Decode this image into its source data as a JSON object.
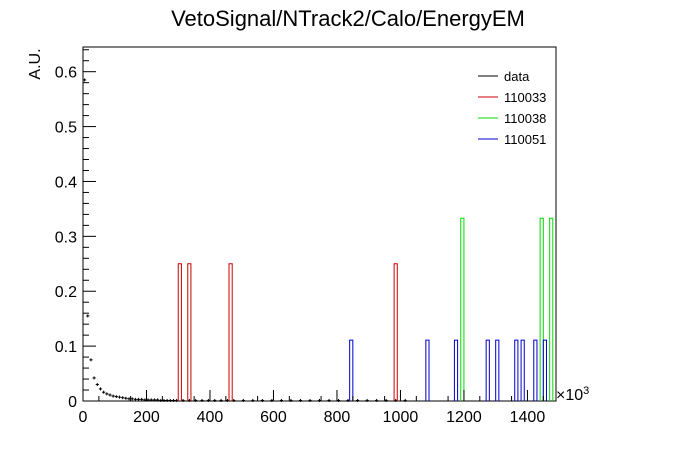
{
  "chart_data": {
    "type": "histogram",
    "title": "VetoSignal/NTrack2/Calo/EnergyEM",
    "xlabel": "",
    "ylabel": "A.U.",
    "x_multiplier": "×10",
    "x_multiplier_exp": "3",
    "xlim": [
      0,
      1490
    ],
    "ylim": [
      0,
      0.645
    ],
    "x_ticks": [
      "0",
      "200",
      "400",
      "600",
      "800",
      "1000",
      "1200",
      "1400"
    ],
    "y_ticks": [
      "0",
      "0.1",
      "0.2",
      "0.3",
      "0.4",
      "0.5",
      "0.6"
    ],
    "bin_width": 10,
    "legend": [
      {
        "label": "data",
        "color": "#000000"
      },
      {
        "label": "110033",
        "color": "#cc0000"
      },
      {
        "label": "110038",
        "color": "#00dd00"
      },
      {
        "label": "110051",
        "color": "#0000cc"
      }
    ],
    "series": [
      {
        "name": "data",
        "style": "markers",
        "color": "#000000",
        "points": [
          [
            5,
            0.585
          ],
          [
            15,
            0.155
          ],
          [
            25,
            0.075
          ],
          [
            35,
            0.042
          ],
          [
            45,
            0.03
          ],
          [
            55,
            0.022
          ],
          [
            65,
            0.016
          ],
          [
            75,
            0.013
          ],
          [
            85,
            0.011
          ],
          [
            95,
            0.009
          ],
          [
            105,
            0.008
          ],
          [
            115,
            0.007
          ],
          [
            125,
            0.006
          ],
          [
            135,
            0.005
          ],
          [
            145,
            0.004
          ],
          [
            155,
            0.004
          ],
          [
            165,
            0.003
          ],
          [
            175,
            0.003
          ],
          [
            185,
            0.003
          ],
          [
            195,
            0.002
          ],
          [
            205,
            0.002
          ],
          [
            215,
            0.002
          ],
          [
            225,
            0.002
          ],
          [
            235,
            0.002
          ],
          [
            245,
            0.001
          ],
          [
            255,
            0.001
          ],
          [
            265,
            0.001
          ],
          [
            275,
            0.001
          ],
          [
            285,
            0.001
          ],
          [
            295,
            0.001
          ],
          [
            315,
            0.001
          ],
          [
            335,
            0.001
          ],
          [
            355,
            0.001
          ],
          [
            375,
            0.001
          ],
          [
            395,
            0.001
          ],
          [
            415,
            0.001
          ],
          [
            435,
            0.001
          ],
          [
            455,
            0.001
          ],
          [
            475,
            0.001
          ],
          [
            505,
            0.001
          ],
          [
            535,
            0.001
          ],
          [
            565,
            0.001
          ],
          [
            595,
            0.001
          ],
          [
            625,
            0.001
          ],
          [
            655,
            0.001
          ],
          [
            685,
            0.001
          ],
          [
            715,
            0.001
          ],
          [
            745,
            0.001
          ],
          [
            775,
            0.001
          ],
          [
            805,
            0.001
          ],
          [
            835,
            0.001
          ],
          [
            865,
            0.001
          ],
          [
            895,
            0.001
          ],
          [
            925,
            0.001
          ],
          [
            955,
            0.001
          ],
          [
            985,
            0.001
          ],
          [
            1015,
            0.001
          ]
        ]
      },
      {
        "name": "110033",
        "style": "step",
        "color": "#cc0000",
        "bins": [
          [
            300,
            0.25
          ],
          [
            330,
            0.25
          ],
          [
            460,
            0.25
          ],
          [
            980,
            0.25
          ]
        ]
      },
      {
        "name": "110038",
        "style": "step",
        "color": "#00dd00",
        "bins": [
          [
            1190,
            0.333
          ],
          [
            1440,
            0.333
          ],
          [
            1470,
            0.333
          ]
        ]
      },
      {
        "name": "110051",
        "style": "step",
        "color": "#0000cc",
        "bins": [
          [
            840,
            0.111
          ],
          [
            1080,
            0.111
          ],
          [
            1170,
            0.111
          ],
          [
            1270,
            0.111
          ],
          [
            1300,
            0.111
          ],
          [
            1360,
            0.111
          ],
          [
            1380,
            0.111
          ],
          [
            1420,
            0.111
          ],
          [
            1450,
            0.111
          ]
        ]
      }
    ]
  }
}
